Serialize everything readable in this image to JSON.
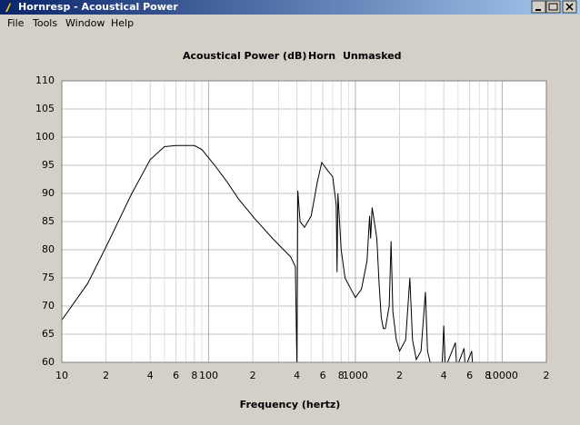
{
  "window": {
    "title": "Hornresp - Acoustical Power",
    "menu": [
      "File",
      "Tools",
      "Window",
      "Help"
    ]
  },
  "chart_data": {
    "type": "line",
    "title": "Acoustical Power (dB)",
    "subtitle": "Horn",
    "mask_mode": "Unmasked",
    "x_label": "Frequency (hertz)",
    "xscale": "log",
    "grid": true,
    "color": "#000000",
    "xlim": [
      10,
      20000
    ],
    "ylim": [
      60,
      110
    ],
    "xticks": [
      10,
      {
        "value": 20,
        "label": "2"
      },
      {
        "value": 40,
        "label": "4"
      },
      {
        "value": 60,
        "label": "6"
      },
      {
        "value": 80,
        "label": "8"
      },
      100,
      {
        "value": 200,
        "label": "2"
      },
      {
        "value": 400,
        "label": "4"
      },
      {
        "value": 600,
        "label": "6"
      },
      {
        "value": 800,
        "label": "8"
      },
      {
        "value": 1000,
        "label": "1000"
      },
      {
        "value": 2000,
        "label": "2"
      },
      {
        "value": 4000,
        "label": "4"
      },
      {
        "value": 6000,
        "label": "6"
      },
      {
        "value": 8000,
        "label": "8"
      },
      10000,
      {
        "value": 20000,
        "label": "2"
      }
    ],
    "x_minor_ticks": [
      30,
      50,
      70,
      90,
      300,
      500,
      700,
      900,
      3000,
      5000,
      7000,
      9000
    ],
    "yticks": [
      60,
      65,
      70,
      75,
      80,
      85,
      90,
      95,
      100,
      105,
      110
    ],
    "x": [
      10,
      15,
      20,
      30,
      40,
      50,
      60,
      80,
      90,
      110,
      134,
      160,
      205,
      273,
      363,
      390,
      400,
      405,
      420,
      450,
      500,
      550,
      590,
      650,
      700,
      740,
      750,
      760,
      800,
      850,
      1000,
      1100,
      1200,
      1250,
      1270,
      1300,
      1400,
      1450,
      1500,
      1550,
      1600,
      1700,
      1750,
      1800,
      1900,
      2000,
      2200,
      2350,
      2450,
      2600,
      2800,
      3000,
      3100,
      3300,
      3900,
      4000,
      4100,
      4800,
      4900,
      5500,
      5600,
      6200,
      6300,
      7000
    ],
    "values": [
      67.5,
      74,
      80.5,
      90,
      96,
      98.3,
      98.5,
      98.5,
      97.8,
      95,
      92,
      89,
      85.6,
      82,
      78.7,
      77,
      59,
      90.5,
      85,
      84,
      86,
      92,
      95.5,
      94,
      93,
      88,
      76,
      90,
      80,
      75,
      71.5,
      73,
      78,
      86,
      82,
      87.5,
      82,
      74,
      68,
      66,
      66,
      70,
      81.5,
      69,
      64,
      62,
      64,
      75,
      64,
      60.5,
      62,
      72.5,
      62,
      59,
      59.5,
      66.5,
      59,
      63.5,
      59,
      62.5,
      59,
      62,
      59,
      58
    ]
  }
}
